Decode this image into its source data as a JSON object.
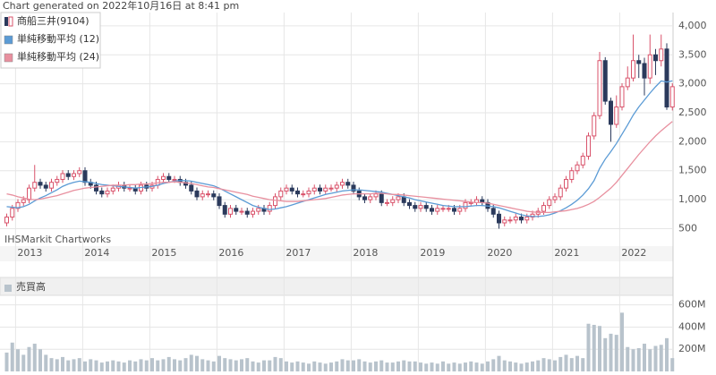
{
  "chart_data": [
    {
      "type": "candlestick",
      "title": "Chart generated on 2022年10月16日 at 8:41 pm",
      "annotation": "IHSMarkit Chartworks",
      "categories": [
        null,
        null,
        "2013",
        null,
        null,
        null,
        null,
        null,
        null,
        null,
        null,
        null,
        null,
        null,
        "2014",
        null,
        null,
        null,
        null,
        null,
        null,
        null,
        null,
        null,
        null,
        null,
        "2015",
        null,
        null,
        null,
        null,
        null,
        null,
        null,
        null,
        null,
        null,
        null,
        "2016",
        null,
        null,
        null,
        null,
        null,
        null,
        null,
        null,
        null,
        null,
        null,
        "2017",
        null,
        null,
        null,
        null,
        null,
        null,
        null,
        null,
        null,
        null,
        null,
        "2018",
        null,
        null,
        null,
        null,
        null,
        null,
        null,
        null,
        null,
        null,
        null,
        "2019",
        null,
        null,
        null,
        null,
        null,
        null,
        null,
        null,
        null,
        null,
        null,
        "2020",
        null,
        null,
        null,
        null,
        null,
        null,
        null,
        null,
        null,
        null,
        null,
        "2021",
        null,
        null,
        null,
        null,
        null,
        null,
        null,
        null,
        null,
        null,
        null,
        "2022",
        null,
        null,
        null,
        null,
        null,
        null,
        null,
        null,
        null
      ],
      "ohlc": {
        "name": "商船三井(9104)",
        "up_color": "#d9536b",
        "down_color": "#2b3a5c",
        "open": [
          600,
          700,
          850,
          950,
          1000,
          1200,
          1300,
          1250,
          1200,
          1300,
          1350,
          1450,
          1400,
          1450,
          1500,
          1300,
          1250,
          1150,
          1100,
          1150,
          1200,
          1250,
          1200,
          1200,
          1150,
          1250,
          1200,
          1250,
          1350,
          1400,
          1350,
          1350,
          1300,
          1250,
          1150,
          1050,
          1100,
          1100,
          1050,
          900,
          750,
          850,
          800,
          800,
          750,
          800,
          850,
          800,
          900,
          1050,
          1150,
          1200,
          1150,
          1100,
          1100,
          1150,
          1200,
          1150,
          1200,
          1200,
          1250,
          1300,
          1250,
          1150,
          1050,
          1000,
          1050,
          1100,
          950,
          950,
          1000,
          1050,
          950,
          900,
          850,
          900,
          850,
          800,
          850,
          850,
          850,
          800,
          850,
          950,
          950,
          1000,
          950,
          850,
          750,
          600,
          650,
          650,
          700,
          650,
          700,
          750,
          800,
          900,
          1000,
          1050,
          1200,
          1350,
          1500,
          1600,
          1750,
          2100,
          2450,
          3400,
          2700,
          2300,
          2600,
          2950,
          3100,
          3400,
          3350,
          3100,
          3500,
          3400,
          3600,
          2600
        ],
        "high": [
          760,
          910,
          1010,
          1060,
          1260,
          1600,
          1360,
          1310,
          1360,
          1410,
          1510,
          1510,
          1510,
          1560,
          1560,
          1360,
          1310,
          1210,
          1210,
          1260,
          1310,
          1310,
          1260,
          1260,
          1310,
          1310,
          1310,
          1410,
          1460,
          1460,
          1410,
          1410,
          1360,
          1310,
          1210,
          1160,
          1160,
          1160,
          1110,
          960,
          910,
          910,
          860,
          860,
          860,
          910,
          910,
          960,
          1110,
          1210,
          1260,
          1260,
          1210,
          1160,
          1210,
          1260,
          1260,
          1260,
          1260,
          1310,
          1360,
          1360,
          1310,
          1210,
          1110,
          1110,
          1160,
          1160,
          1010,
          1060,
          1110,
          1110,
          1010,
          960,
          960,
          960,
          910,
          910,
          910,
          910,
          910,
          910,
          1010,
          1010,
          1060,
          1060,
          1010,
          910,
          810,
          710,
          710,
          760,
          760,
          760,
          810,
          860,
          960,
          1060,
          1110,
          1260,
          1410,
          1560,
          1660,
          1810,
          2160,
          2510,
          3550,
          3460,
          2760,
          2800,
          3010,
          3300,
          3850,
          3500,
          3450,
          3850,
          3600,
          3850,
          3700,
          3010
        ],
        "low": [
          540,
          640,
          790,
          890,
          940,
          1140,
          1190,
          1140,
          1140,
          1240,
          1290,
          1340,
          1340,
          1390,
          1240,
          1190,
          1090,
          1040,
          1040,
          1090,
          1140,
          1140,
          1140,
          1090,
          1090,
          1140,
          1140,
          1190,
          1290,
          1290,
          1290,
          1240,
          1190,
          1090,
          990,
          990,
          1040,
          990,
          840,
          690,
          690,
          740,
          740,
          690,
          690,
          740,
          740,
          740,
          840,
          990,
          1090,
          1090,
          1040,
          1040,
          1040,
          1090,
          1090,
          1090,
          1140,
          1140,
          1190,
          1190,
          1090,
          990,
          940,
          940,
          990,
          890,
          890,
          890,
          940,
          890,
          840,
          790,
          790,
          790,
          740,
          740,
          790,
          790,
          740,
          740,
          790,
          890,
          890,
          890,
          790,
          690,
          500,
          540,
          590,
          590,
          590,
          590,
          640,
          690,
          740,
          840,
          940,
          990,
          1140,
          1290,
          1440,
          1540,
          1690,
          2040,
          2390,
          2640,
          2000,
          2240,
          2540,
          2890,
          3040,
          3100,
          2800,
          3000,
          3150,
          3300,
          2550,
          2540
        ],
        "close": [
          700,
          850,
          950,
          1000,
          1200,
          1300,
          1250,
          1200,
          1300,
          1350,
          1450,
          1400,
          1450,
          1500,
          1300,
          1250,
          1150,
          1100,
          1150,
          1200,
          1250,
          1200,
          1200,
          1150,
          1250,
          1200,
          1250,
          1350,
          1400,
          1350,
          1350,
          1300,
          1250,
          1150,
          1050,
          1100,
          1100,
          1050,
          900,
          750,
          850,
          800,
          800,
          750,
          800,
          850,
          800,
          900,
          1050,
          1150,
          1200,
          1150,
          1100,
          1100,
          1150,
          1200,
          1150,
          1200,
          1200,
          1250,
          1300,
          1250,
          1150,
          1050,
          1000,
          1050,
          1100,
          950,
          950,
          1000,
          1050,
          950,
          900,
          850,
          900,
          850,
          800,
          850,
          850,
          850,
          800,
          850,
          950,
          950,
          1000,
          950,
          850,
          750,
          600,
          650,
          650,
          700,
          650,
          700,
          750,
          800,
          900,
          1000,
          1050,
          1200,
          1350,
          1500,
          1600,
          1750,
          2100,
          2450,
          3400,
          2700,
          2300,
          2600,
          2950,
          3100,
          3400,
          3350,
          3100,
          3500,
          3400,
          3600,
          2600,
          2950
        ]
      },
      "series": [
        {
          "name": "単純移動平均 (12)",
          "color": "#5b9bd5",
          "values": [
            880,
            870,
            860,
            880,
            920,
            980,
            1030,
            1070,
            1120,
            1170,
            1230,
            1270,
            1300,
            1320,
            1310,
            1300,
            1280,
            1260,
            1250,
            1240,
            1230,
            1220,
            1210,
            1200,
            1210,
            1220,
            1230,
            1250,
            1280,
            1300,
            1320,
            1330,
            1330,
            1320,
            1300,
            1280,
            1260,
            1240,
            1200,
            1150,
            1100,
            1050,
            1000,
            950,
            900,
            870,
            850,
            830,
            840,
            860,
            880,
            910,
            940,
            970,
            1000,
            1030,
            1060,
            1090,
            1110,
            1130,
            1150,
            1160,
            1170,
            1170,
            1160,
            1150,
            1140,
            1130,
            1110,
            1090,
            1070,
            1050,
            1030,
            1000,
            980,
            960,
            940,
            920,
            900,
            890,
            880,
            880,
            880,
            890,
            900,
            900,
            890,
            880,
            860,
            830,
            800,
            770,
            740,
            720,
            710,
            710,
            720,
            740,
            770,
            810,
            860,
            920,
            990,
            1080,
            1190,
            1330,
            1540,
            1700,
            1830,
            1970,
            2130,
            2290,
            2460,
            2600,
            2720,
            2840,
            2950,
            3050,
            3030,
            3050
          ]
        },
        {
          "name": "単純移動平均 (24)",
          "color": "#e8909f",
          "values": [
            1100,
            1080,
            1050,
            1030,
            1010,
            1000,
            1010,
            1030,
            1050,
            1070,
            1100,
            1130,
            1160,
            1180,
            1200,
            1210,
            1220,
            1230,
            1240,
            1250,
            1250,
            1250,
            1260,
            1260,
            1270,
            1270,
            1280,
            1290,
            1300,
            1300,
            1310,
            1300,
            1290,
            1280,
            1260,
            1240,
            1220,
            1210,
            1190,
            1170,
            1150,
            1130,
            1110,
            1090,
            1060,
            1040,
            1020,
            1000,
            990,
            980,
            970,
            970,
            970,
            980,
            990,
            1000,
            1010,
            1020,
            1040,
            1060,
            1080,
            1090,
            1100,
            1100,
            1100,
            1100,
            1110,
            1110,
            1100,
            1090,
            1090,
            1080,
            1070,
            1060,
            1050,
            1040,
            1030,
            1020,
            1010,
            1000,
            990,
            980,
            970,
            960,
            950,
            950,
            940,
            920,
            900,
            880,
            860,
            840,
            820,
            800,
            790,
            780,
            780,
            780,
            790,
            800,
            810,
            830,
            850,
            880,
            920,
            970,
            1040,
            1120,
            1200,
            1300,
            1420,
            1540,
            1660,
            1780,
            1890,
            2000,
            2100,
            2190,
            2270,
            2350
          ]
        }
      ],
      "ylim": [
        245,
        4230
      ],
      "yticks": [
        500,
        {
          "value": 1000,
          "label": "1,000"
        },
        {
          "value": 1500,
          "label": "1,500"
        },
        {
          "value": 2000,
          "label": "2,000"
        },
        {
          "value": 2500,
          "label": "2,500"
        },
        {
          "value": 3000,
          "label": "3,000"
        },
        {
          "value": 3500,
          "label": "3,500"
        },
        {
          "value": 4000,
          "label": "4,000"
        }
      ],
      "grid": true
    },
    {
      "type": "bar",
      "title": "売買高",
      "color": "#b8c3cc",
      "values": [
        170,
        260,
        200,
        150,
        220,
        250,
        200,
        150,
        120,
        110,
        130,
        100,
        110,
        120,
        90,
        110,
        100,
        80,
        90,
        100,
        90,
        80,
        100,
        90,
        110,
        100,
        120,
        100,
        110,
        130,
        110,
        100,
        120,
        150,
        140,
        110,
        100,
        90,
        140,
        120,
        110,
        100,
        110,
        120,
        90,
        80,
        100,
        100,
        130,
        120,
        90,
        80,
        90,
        80,
        70,
        90,
        80,
        70,
        80,
        90,
        110,
        100,
        100,
        110,
        90,
        80,
        90,
        100,
        80,
        80,
        90,
        100,
        90,
        90,
        80,
        70,
        80,
        70,
        90,
        70,
        80,
        70,
        80,
        90,
        80,
        70,
        90,
        110,
        140,
        100,
        90,
        80,
        70,
        80,
        90,
        100,
        120,
        110,
        100,
        130,
        150,
        120,
        140,
        120,
        430,
        420,
        410,
        300,
        340,
        330,
        530,
        220,
        200,
        210,
        250,
        200,
        230,
        240,
        300,
        120
      ],
      "ylim": [
        0,
        670
      ],
      "yticks": [
        {
          "value": 200,
          "label": "200M"
        },
        {
          "value": 400,
          "label": "400M"
        },
        {
          "value": 600,
          "label": "600M"
        }
      ],
      "grid": true
    }
  ]
}
